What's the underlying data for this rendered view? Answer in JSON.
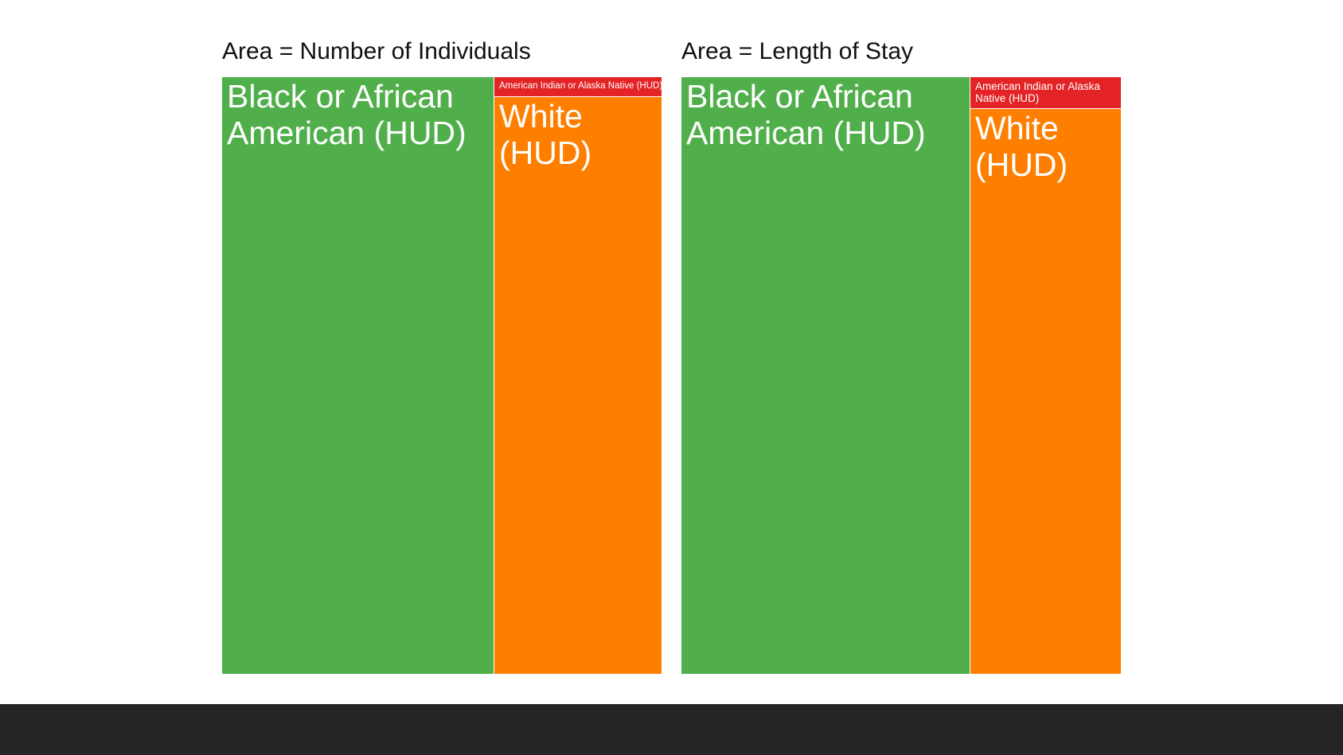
{
  "chart_data": [
    {
      "type": "treemap",
      "title": "Area = Number of Individuals",
      "items": [
        {
          "name": "Black or African American (HUD)",
          "share": 0.618,
          "color": "#50af4b"
        },
        {
          "name": "American Indian or Alaska Native (HUD)",
          "share": 0.012,
          "color": "#e32325"
        },
        {
          "name": "White (HUD)",
          "share": 0.37,
          "color": "#fe7f00"
        }
      ]
    },
    {
      "type": "treemap",
      "title": "Area = Length of Stay",
      "items": [
        {
          "name": "Black or African American (HUD)",
          "share": 0.655,
          "color": "#50af4b"
        },
        {
          "name": "American Indian or Alaska Native (HUD)",
          "share": 0.018,
          "color": "#e32325"
        },
        {
          "name": "White (HUD)",
          "share": 0.327,
          "color": "#fe7f00"
        }
      ]
    }
  ],
  "footer": {
    "color": "#252525"
  }
}
